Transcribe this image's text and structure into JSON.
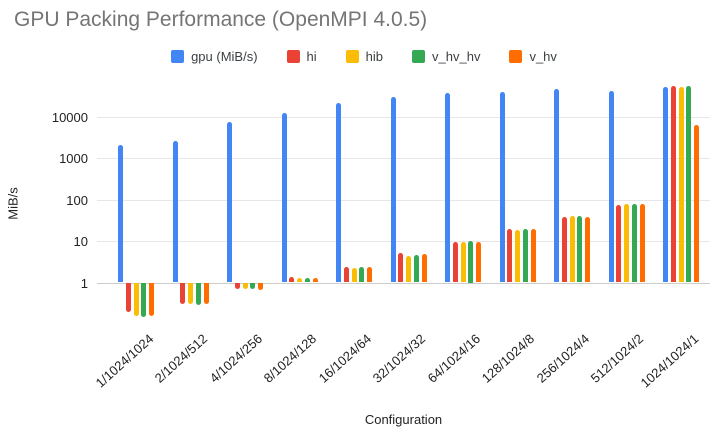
{
  "title": "GPU Packing Performance (OpenMPI 4.0.5)",
  "axes": {
    "x_title": "Configuration",
    "y_title": "MiB/s"
  },
  "chart_data": {
    "type": "bar",
    "title": "GPU Packing Performance (OpenMPI 4.0.5)",
    "xlabel": "Configuration",
    "ylabel": "MiB/s",
    "y_scale": "log",
    "y_ticks": [
      1,
      10,
      100,
      1000,
      10000
    ],
    "ylim": [
      0.1,
      60000
    ],
    "grid": true,
    "legend_position": "top",
    "categories": [
      "1/1024/1024",
      "2/1024/512",
      "4/1024/256",
      "8/1024/128",
      "16/1024/64",
      "32/1024/32",
      "64/1024/16",
      "128/1024/8",
      "256/1024/4",
      "512/1024/2",
      "1024/1024/1"
    ],
    "series": [
      {
        "name": "gpu (MiB/s)",
        "color": "#4285F4",
        "values": [
          2100,
          2500,
          7500,
          12000,
          21000,
          30000,
          37000,
          40000,
          45000,
          41000,
          51000
        ]
      },
      {
        "name": "hi",
        "color": "#EA4335",
        "values": [
          0.19,
          0.31,
          0.68,
          1.35,
          2.3,
          5.0,
          9.6,
          20,
          37,
          72,
          53000
        ]
      },
      {
        "name": "hib",
        "color": "#FBBC04",
        "values": [
          0.16,
          0.3,
          0.68,
          1.3,
          2.2,
          4.4,
          9.7,
          18.5,
          41,
          79,
          50000
        ]
      },
      {
        "name": "v_hv_hv",
        "color": "#34A853",
        "values": [
          0.15,
          0.28,
          0.7,
          1.25,
          2.3,
          4.7,
          10,
          20,
          39,
          76,
          53000
        ]
      },
      {
        "name": "v_hv",
        "color": "#FF6D01",
        "values": [
          0.16,
          0.31,
          0.66,
          1.3,
          2.3,
          4.8,
          9.7,
          20,
          38,
          78,
          6300
        ]
      }
    ]
  },
  "colors": {
    "title_text": "#757575",
    "axis_text": "#222222",
    "gridline": "#e6e6e6",
    "baseline": "#cccccc",
    "background": "#ffffff"
  }
}
